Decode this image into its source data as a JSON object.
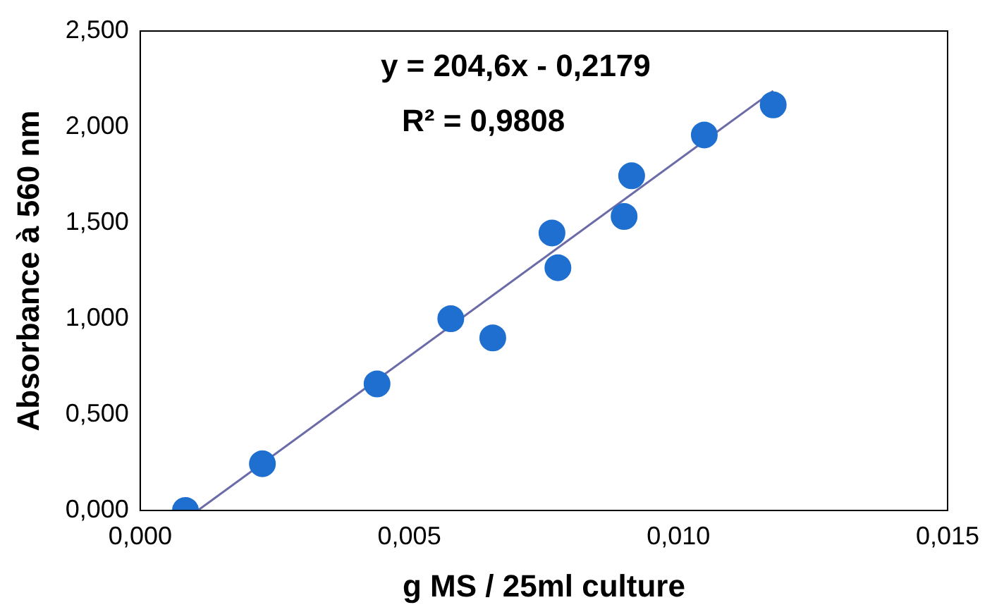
{
  "chart_data": {
    "type": "scatter",
    "xlabel": "g MS / 25ml culture",
    "ylabel": "Absorbance à 560 nm",
    "annotations": [
      "y = 204,6x - 0,2179",
      "R² = 0,9808"
    ],
    "series": [
      {
        "color": "#1f6fd0",
        "marker": "circle",
        "x": [
          0.00084,
          0.00227,
          0.0044,
          0.00577,
          0.00655,
          0.00765,
          0.00776,
          0.00899,
          0.00913,
          0.01048,
          0.01176
        ],
        "values": [
          0.0,
          0.244,
          0.66,
          1.0,
          0.9,
          1.447,
          1.266,
          1.533,
          1.745,
          1.958,
          2.115
        ]
      },
      {
        "type": "line",
        "marker": "none",
        "color": "#6b6ba8",
        "x": [
          0.00107,
          0.01176
        ],
        "values": [
          0.0,
          2.188
        ]
      }
    ],
    "grid": false,
    "xlim": [
      0,
      0.015
    ],
    "xticks": [
      {
        "value": 0,
        "label": "0,000"
      },
      {
        "value": 0.005,
        "label": "0,005"
      },
      {
        "value": 0.01,
        "label": "0,010"
      },
      {
        "value": 0.015,
        "label": "0,015"
      }
    ],
    "ylim": [
      0,
      2.5
    ],
    "yticks": [
      {
        "value": 0,
        "label": "0,000"
      },
      {
        "value": 0.5,
        "label": "0,500"
      },
      {
        "value": 1,
        "label": "1,000"
      },
      {
        "value": 1.5,
        "label": "1,500"
      },
      {
        "value": 2,
        "label": "2,000"
      },
      {
        "value": 2.5,
        "label": "2,500"
      }
    ]
  }
}
